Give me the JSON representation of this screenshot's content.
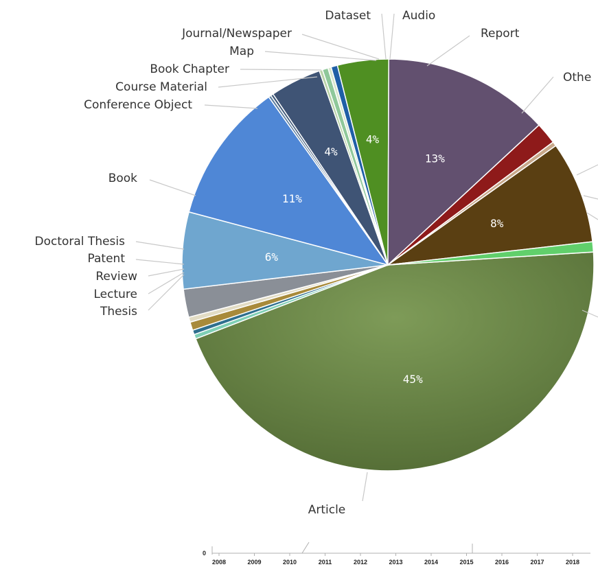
{
  "chart_data": [
    {
      "type": "pie",
      "title": "",
      "slices": [
        {
          "label": "Article",
          "value": 45,
          "pct_text": "45%",
          "color": "#6f8f4b"
        },
        {
          "label": "Thesis",
          "value": 0.35,
          "pct_text": "",
          "color": "#7fcfb5"
        },
        {
          "label": "Lecture",
          "value": 0.35,
          "pct_text": "",
          "color": "#2e6f8e"
        },
        {
          "label": "Review",
          "value": 0.65,
          "pct_text": "",
          "color": "#a88a3a"
        },
        {
          "label": "Patent",
          "value": 0.4,
          "pct_text": "",
          "color": "#e2dcc4"
        },
        {
          "label": "Doctoral Thesis",
          "value": 2.2,
          "pct_text": "",
          "color": "#8a8f97"
        },
        {
          "label": "Book",
          "value": 6,
          "pct_text": "6%",
          "color": "#6fa6cf"
        },
        {
          "label": "Conference Object",
          "value": 11,
          "pct_text": "11%",
          "color": "#4f87d6"
        },
        {
          "label": "Course Material",
          "value": 0.2,
          "pct_text": "",
          "color": "#5d7fa0"
        },
        {
          "label": "Book Chapter",
          "value": 0.2,
          "pct_text": "",
          "color": "#3e5878"
        },
        {
          "label": "",
          "value": 4,
          "pct_text": "4%",
          "color": "#3f5475"
        },
        {
          "label": "Map",
          "value": 0.25,
          "pct_text": "",
          "color": "#b9d3a8"
        },
        {
          "label": "Journal/Newspaper",
          "value": 0.45,
          "pct_text": "",
          "color": "#8fc89a"
        },
        {
          "label": "Dataset",
          "value": 0.25,
          "pct_text": "",
          "color": "#d7e6cc"
        },
        {
          "label": "Audio",
          "value": 0.5,
          "pct_text": "",
          "color": "#1f5fa6"
        },
        {
          "label": "Report",
          "value": 4,
          "pct_text": "4%",
          "color": "#4f8f22"
        },
        {
          "label": "Othe",
          "value": 13,
          "pct_text": "13%",
          "color": "#62506f"
        },
        {
          "label": "",
          "value": 1.7,
          "pct_text": "",
          "color": "#8e1a1a"
        },
        {
          "label": "",
          "value": 0.35,
          "pct_text": "",
          "color": "#c8a88a"
        },
        {
          "label": "",
          "value": 8,
          "pct_text": "8%",
          "color": "#5a3f12"
        },
        {
          "label": "",
          "value": 0.8,
          "pct_text": "",
          "color": "#61cf6b"
        }
      ]
    },
    {
      "type": "line",
      "title": "",
      "xlabel": "",
      "ylabel": "",
      "x": [
        "2008",
        "2009",
        "2010",
        "2011",
        "2012",
        "2013",
        "2014",
        "2015",
        "2016",
        "2017",
        "2018"
      ],
      "y_ticks": [
        "0"
      ]
    }
  ]
}
